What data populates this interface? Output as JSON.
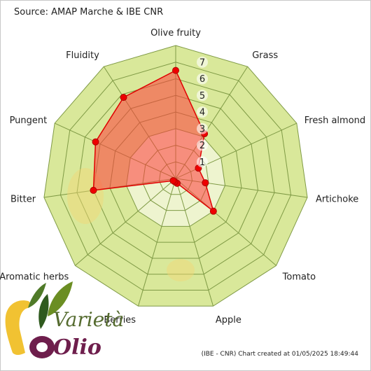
{
  "header": {
    "source": "Source: AMAP Marche & IBE CNR"
  },
  "footer": {
    "credit": "(IBE - CNR) Chart created at 01/05/2025 18:49:44"
  },
  "logo": {
    "line1": "Varietà",
    "line2": "Olio"
  },
  "colors": {
    "grid_fill": "#d9e89a",
    "grid_fill_inner": "#eef4cf",
    "grid_line": "#7f9a45",
    "series_fill": "#ff3b3b",
    "series_line": "#e00000",
    "marker": "#ee0000"
  },
  "chart_data": {
    "type": "radar",
    "axes": [
      "Olive fruity",
      "Grass",
      "Fresh almond",
      "Artichoke",
      "Tomato",
      "Apple",
      "Berries",
      "Aromatic herbs",
      "Bitter",
      "Pungent",
      "Fluidity"
    ],
    "r_ticks": [
      "1",
      "2",
      "3",
      "4",
      "5",
      "6",
      "7"
    ],
    "r_range": [
      0,
      8
    ],
    "grid": true,
    "series": [
      {
        "values": [
          6.5,
          3.2,
          1.5,
          1.8,
          3.0,
          0.3,
          0.2,
          0.2,
          5.0,
          5.3,
          5.8
        ]
      }
    ]
  }
}
